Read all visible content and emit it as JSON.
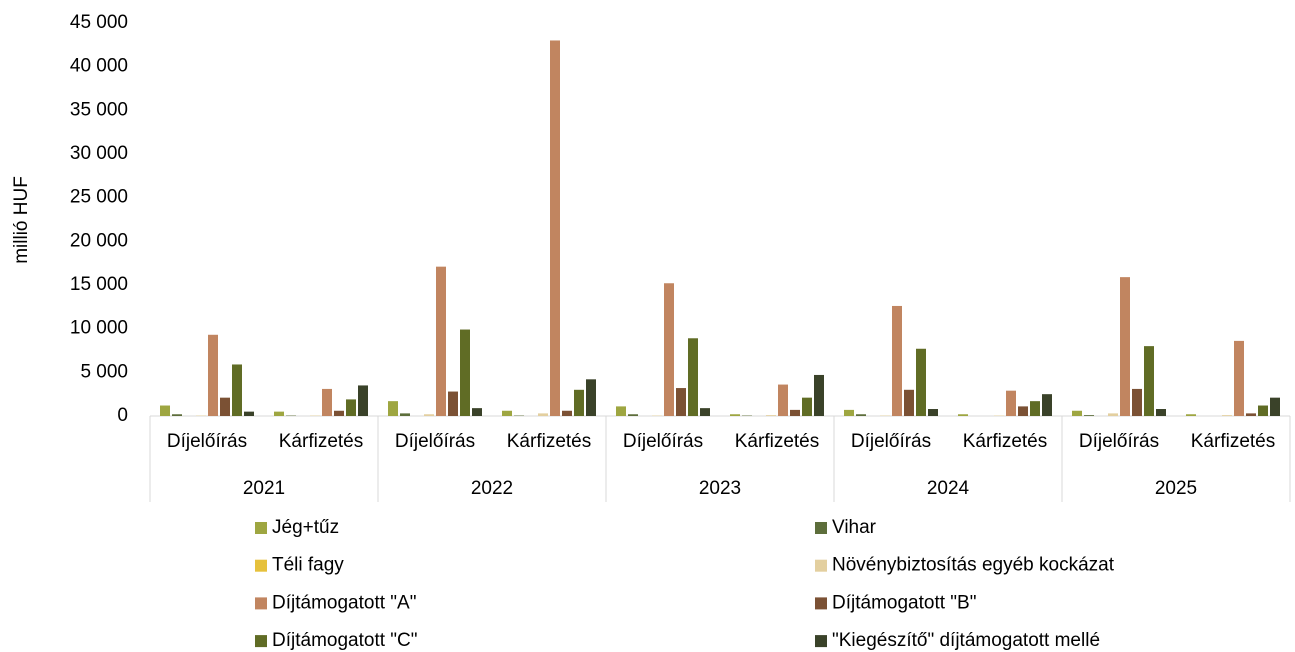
{
  "chart_data": {
    "type": "bar",
    "ylabel": "millió HUF",
    "categories": [
      "Díjelőírás",
      "Kárfizetés",
      "Díjelőírás",
      "Kárfizetés",
      "Díjelőírás",
      "Kárfizetés",
      "Díjelőírás",
      "Kárfizetés",
      "Díjelőírás",
      "Kárfizetés"
    ],
    "groups": [
      "2021",
      "2022",
      "2023",
      "2024",
      "2025"
    ],
    "series": [
      {
        "name": "Jég+tűz",
        "color": "#9ea641",
        "values": [
          1200,
          500,
          1700,
          600,
          1100,
          200,
          700,
          200,
          600,
          200
        ]
      },
      {
        "name": "Vihar",
        "color": "#5d6e3b",
        "values": [
          200,
          50,
          300,
          50,
          200,
          50,
          200,
          0,
          100,
          0
        ]
      },
      {
        "name": "Téli fagy",
        "color": "#e6c13c",
        "values": [
          0,
          0,
          0,
          0,
          0,
          0,
          0,
          0,
          0,
          0
        ]
      },
      {
        "name": "Növénybiztosítás egyéb kockázat",
        "color": "#e3cf9f",
        "values": [
          50,
          50,
          200,
          300,
          50,
          100,
          50,
          50,
          300,
          100
        ]
      },
      {
        "name": "Díjtámogatott \"A\"",
        "color": "#c18560",
        "values": [
          9300,
          3100,
          17100,
          43000,
          15200,
          3600,
          12600,
          2900,
          15900,
          8600
        ]
      },
      {
        "name": "Díjtámogatott \"B\"",
        "color": "#7b5134",
        "values": [
          2100,
          600,
          2800,
          600,
          3200,
          700,
          3000,
          1100,
          3100,
          300
        ]
      },
      {
        "name": "Díjtámogatott \"C\"",
        "color": "#606c25",
        "values": [
          5900,
          1900,
          9900,
          3000,
          8900,
          2100,
          7700,
          1700,
          8000,
          1200
        ]
      },
      {
        "name": "\"Kiegészítő\" díjtámogatott mellé",
        "color": "#3a4229",
        "values": [
          500,
          3500,
          900,
          4200,
          900,
          4700,
          800,
          2500,
          800,
          2100
        ]
      }
    ],
    "ylim": [
      0,
      45000
    ],
    "yticks": [
      0,
      {
        "value": 5000,
        "label": "5 000"
      },
      {
        "value": 10000,
        "label": "10 000"
      },
      {
        "value": 15000,
        "label": "15 000"
      },
      {
        "value": 20000,
        "label": "20 000"
      },
      {
        "value": 25000,
        "label": "25 000"
      },
      {
        "value": 30000,
        "label": "30 000"
      },
      {
        "value": 35000,
        "label": "35 000"
      },
      {
        "value": 40000,
        "label": "40 000"
      },
      {
        "value": 45000,
        "label": "45 000"
      }
    ],
    "legend": "bottom"
  }
}
